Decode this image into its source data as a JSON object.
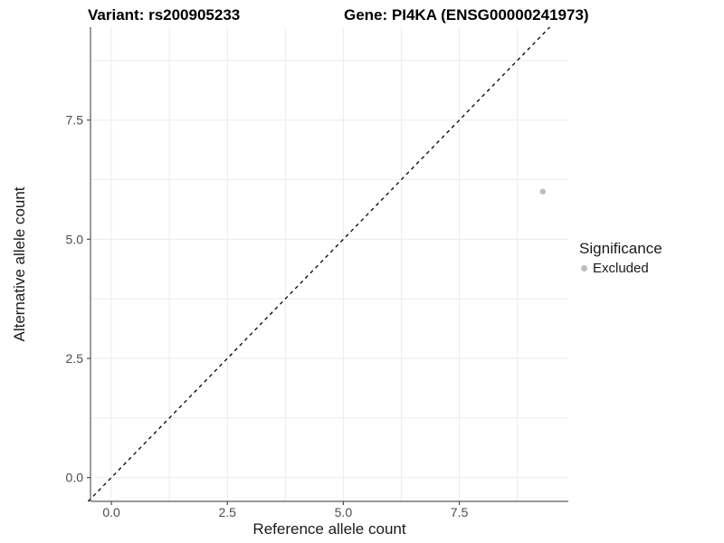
{
  "figure": {
    "background": "#ffffff"
  },
  "chart_data": {
    "type": "scatter",
    "titles": {
      "left": "Variant: rs200905233",
      "right": "Gene: PI4KA (ENSG00000241973)"
    },
    "xlabel": "Reference allele count",
    "ylabel": "Alternative allele count",
    "x_ticks": [
      0,
      2.5,
      5,
      7.5
    ],
    "x_tick_labels": [
      "0.0",
      "2.5",
      "5.0",
      "7.5"
    ],
    "y_ticks": [
      0,
      2.5,
      5,
      7.5
    ],
    "y_tick_labels": [
      "0.0",
      "2.5",
      "5.0",
      "7.5"
    ],
    "xlim": [
      -0.45,
      9.85
    ],
    "ylim": [
      -0.5,
      9.45
    ],
    "grid": "on",
    "gridlines": {
      "x": [
        0,
        1.25,
        2.5,
        3.75,
        5,
        6.25,
        7.5,
        8.75
      ],
      "y": [
        0,
        1.25,
        2.5,
        3.75,
        5,
        6.25,
        7.5,
        8.75
      ]
    },
    "diagonal": {
      "style": "dashed",
      "color": "#000000",
      "from": [
        -0.5,
        -0.5
      ],
      "to": [
        9.45,
        9.45
      ]
    },
    "series": [
      {
        "name": "Excluded",
        "color": "#bdbdbd",
        "point_radius": 3.2,
        "points": [
          {
            "x": 9.3,
            "y": 6.0
          }
        ]
      }
    ],
    "legend": {
      "position": "right",
      "title": "Significance",
      "items": [
        {
          "label": "Excluded",
          "color": "#bdbdbd"
        }
      ]
    },
    "colors": {
      "gridline": "#ebebeb",
      "axis_line": "#595959",
      "tick_mark": "#4d4d4d",
      "tick_text": "#4d4d4d",
      "title_text": "#000000"
    }
  }
}
